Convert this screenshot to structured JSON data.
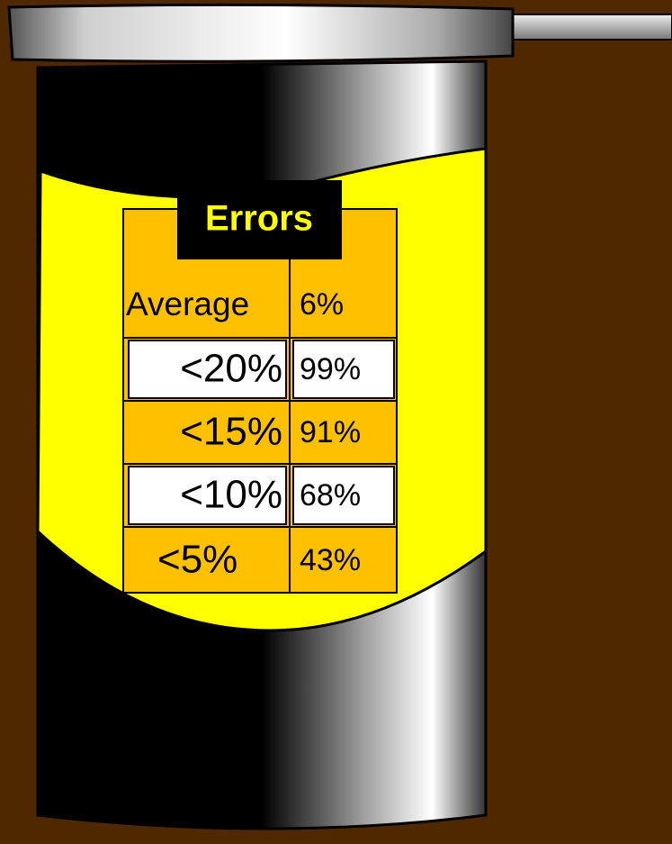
{
  "table": {
    "title": "Errors",
    "rows": [
      [
        "Average",
        "6%"
      ],
      [
        "<20%",
        "99%"
      ],
      [
        "<15%",
        "91%"
      ],
      [
        "<10%",
        "68%"
      ],
      [
        "<5%",
        "43%"
      ]
    ]
  }
}
